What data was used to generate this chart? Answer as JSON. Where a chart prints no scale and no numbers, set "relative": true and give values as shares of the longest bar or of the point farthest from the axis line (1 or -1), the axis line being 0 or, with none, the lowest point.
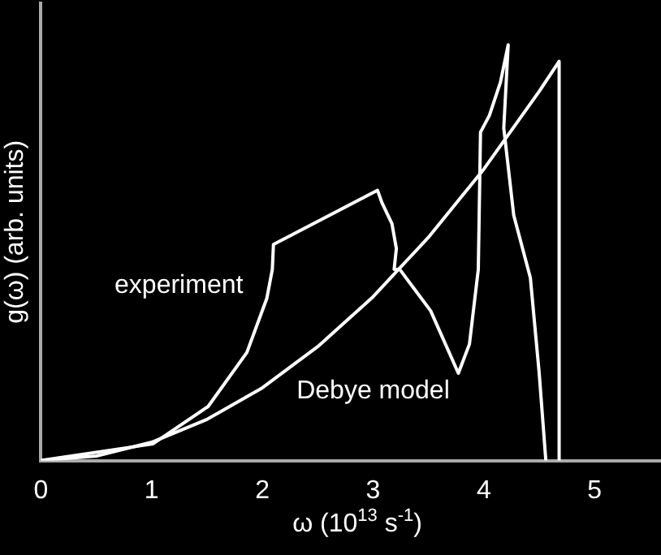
{
  "chart_data": {
    "type": "line",
    "relative": true,
    "xlabel": "ω (10$^{13}$ s$^{-1}$)",
    "ylabel": "g(ω) (arb. units)",
    "xlim": [
      0,
      5.6
    ],
    "xticks": [
      0,
      1,
      2,
      3,
      4,
      5
    ],
    "grid": false,
    "legend": false,
    "marker": "none",
    "line_style": "solid",
    "series": [
      {
        "name": "experiment",
        "color": "#ffffff",
        "x": [
          0,
          1.01,
          1.51,
          1.86,
          2.04,
          2.09,
          2.1,
          3.04,
          3.08,
          3.17,
          3.21,
          3.19,
          3.24,
          3.52,
          3.77,
          3.87,
          3.95,
          3.97,
          4.05,
          4.15,
          4.22,
          4.18,
          4.27,
          4.42,
          4.5,
          4.56
        ],
        "values": [
          0,
          0.04,
          0.13,
          0.26,
          0.39,
          0.46,
          0.52,
          0.65,
          0.62,
          0.57,
          0.51,
          0.46,
          0.46,
          0.36,
          0.21,
          0.28,
          0.46,
          0.79,
          0.83,
          0.91,
          1,
          0.8,
          0.59,
          0.44,
          0.21,
          0
        ]
      },
      {
        "name": "Debye model",
        "color": "#ffffff",
        "x": [
          0,
          0.5,
          1,
          1.5,
          2,
          2.5,
          3,
          3.5,
          4,
          4.5,
          4.68,
          4.68
        ],
        "values": [
          0,
          0.011,
          0.044,
          0.099,
          0.175,
          0.274,
          0.394,
          0.537,
          0.701,
          0.888,
          0.96,
          0
        ]
      }
    ]
  }
}
